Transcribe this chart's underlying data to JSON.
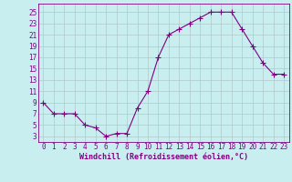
{
  "x": [
    0,
    1,
    2,
    3,
    4,
    5,
    6,
    7,
    8,
    9,
    10,
    11,
    12,
    13,
    14,
    15,
    16,
    17,
    18,
    19,
    20,
    21,
    22,
    23
  ],
  "y": [
    9,
    7,
    7,
    7,
    5,
    4.5,
    3,
    3.5,
    3.5,
    8,
    11,
    17,
    21,
    22,
    23,
    24,
    25,
    25,
    25,
    22,
    19,
    16,
    14,
    14
  ],
  "line_color": "#800080",
  "marker": "+",
  "marker_color": "#800080",
  "bg_color": "#c8eef0",
  "grid_color": "#b0c8c8",
  "xlabel": "Windchill (Refroidissement éolien,°C)",
  "xlabel_color": "#800080",
  "xlabel_fontsize": 6.0,
  "xtick_labels": [
    "0",
    "1",
    "2",
    "3",
    "4",
    "5",
    "6",
    "7",
    "8",
    "9",
    "10",
    "11",
    "12",
    "13",
    "14",
    "15",
    "16",
    "17",
    "18",
    "19",
    "20",
    "21",
    "22",
    "23"
  ],
  "ytick_labels": [
    "3",
    "5",
    "7",
    "9",
    "11",
    "13",
    "15",
    "17",
    "19",
    "21",
    "23",
    "25"
  ],
  "ytick_values": [
    3,
    5,
    7,
    9,
    11,
    13,
    15,
    17,
    19,
    21,
    23,
    25
  ],
  "xlim": [
    -0.5,
    23.5
  ],
  "ylim": [
    2,
    26.5
  ],
  "tick_fontsize": 5.5,
  "line_width": 0.8,
  "marker_size": 4
}
